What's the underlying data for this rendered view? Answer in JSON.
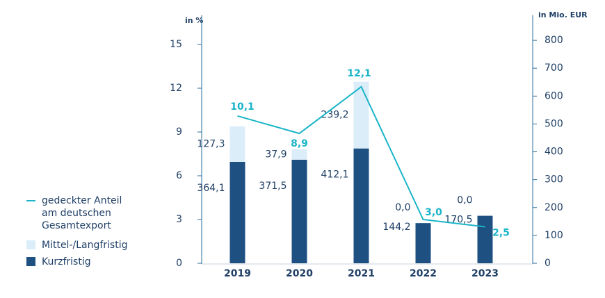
{
  "chart_data": {
    "type": "bar-line",
    "categories": [
      "2019",
      "2020",
      "2021",
      "2022",
      "2023"
    ],
    "ylabel": "in %",
    "y2label": "in Mio. EUR",
    "ylim": [
      0,
      17
    ],
    "yticks": [
      0,
      3,
      6,
      9,
      12,
      15
    ],
    "y2lim": [
      0,
      890
    ],
    "y2ticks": [
      0,
      100,
      200,
      300,
      400,
      500,
      600,
      700,
      800
    ],
    "series": [
      {
        "name": "Kurzfristig",
        "color": "#1f5082",
        "axis": "y2",
        "stack": true,
        "values": [
          364.1,
          371.5,
          412.1,
          144.2,
          170.5
        ],
        "value_labels": [
          "364,1",
          "371,5",
          "412,1",
          "144,2",
          "170,5"
        ]
      },
      {
        "name": "Mittel-/Langfristig",
        "color": "#dcedfa",
        "axis": "y2",
        "stack": true,
        "values": [
          127.3,
          37.9,
          239.2,
          0.0,
          0.0
        ],
        "value_labels": [
          "127,3",
          "37,9",
          "239,2",
          "0,0",
          "0,0"
        ]
      },
      {
        "name": "gedeckter Anteil am deutschen Gesamtexport",
        "color": "#1ab4c8",
        "type": "line",
        "axis": "y",
        "values": [
          10.1,
          8.9,
          12.1,
          3.0,
          2.5
        ],
        "value_labels": [
          "10,1",
          "8,9",
          "12,1",
          "3,0",
          "2,5"
        ]
      }
    ]
  }
}
